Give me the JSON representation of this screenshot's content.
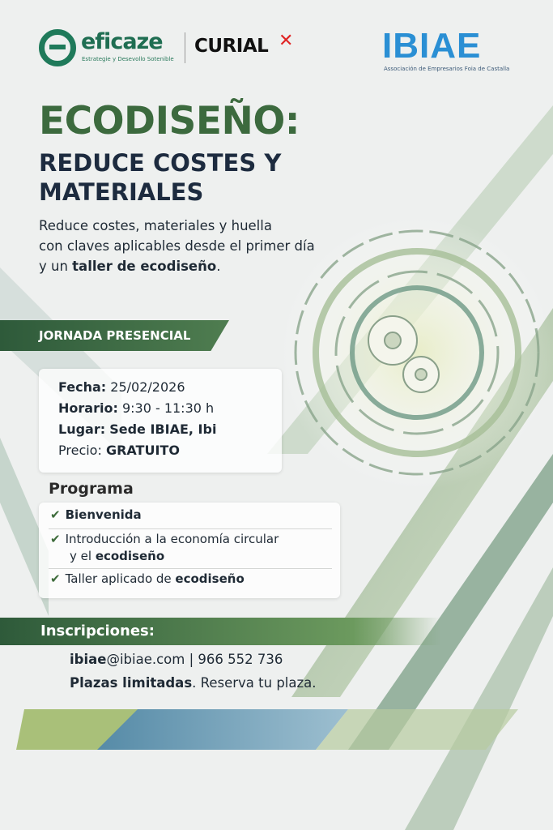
{
  "header": {
    "logo_eficaze": "eficaze",
    "logo_eficaze_tagline": "Estrategie y Desevollo Sotenible",
    "logo_curial": "CURIAL",
    "logo_ibiae": "IBIAE",
    "logo_ibiae_tagline": "Associación de Empresarios Foia de Castalla"
  },
  "title": "ECODISEÑO:",
  "subtitle": [
    "REDUCE COSTES Y",
    "MATERIALES"
  ],
  "intro": {
    "line1": "Reduce costes, materiales y huella",
    "line2": "con claves aplicables desde el primer día",
    "line3_pre": "y un ",
    "line3_bold": "taller de ecodiseño",
    "line3_post": "."
  },
  "event_type": "JORNADA PRESENCIAL",
  "details": [
    {
      "label": "Fecha:",
      "value": "25/02/2026"
    },
    {
      "label": "Horario:",
      "value": "9:30 - 11:30 h"
    },
    {
      "label": "Lugar:",
      "value": "Sede IBIAE, Ibi"
    },
    {
      "label": "Precio:",
      "value": "GRATUITO"
    }
  ],
  "program": {
    "heading": "Programa",
    "items": [
      {
        "text": "Bienvenida"
      },
      {
        "line1": "Introducción a la economía circular",
        "line2_pre": "y el ",
        "line2_bold": "ecodiseño"
      },
      {
        "pre": "Taller aplicado de ",
        "bold": "ecodiseño"
      }
    ]
  },
  "registration": {
    "heading": "Inscripciones:",
    "email": "ibiae",
    "email_rest": "@ibiae.com | 966 552 736",
    "limited_bold": "Plazas limitadas",
    "limited_rest": ". Reserva tu plaza."
  },
  "colors": {
    "primary_green": "#3c6a3e",
    "navy": "#1d2b3f",
    "ibiae_blue": "#2a8fd4",
    "curial_red": "#e02424"
  }
}
